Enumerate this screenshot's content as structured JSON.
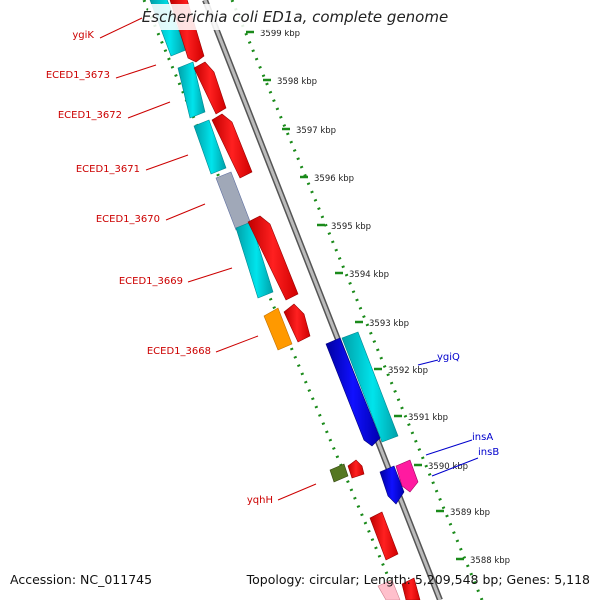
{
  "title": "Escherichia coli ED1a, complete genome",
  "footer": {
    "accession": "Accession: NC_011745",
    "summary": "Topology: circular; Length: 5,209,548 bp; Genes: 5,118"
  },
  "kbp_ticks": [
    "3599 kbp",
    "3598 kbp",
    "3597 kbp",
    "3596 kbp",
    "3595 kbp",
    "3594 kbp",
    "3593 kbp",
    "3592 kbp",
    "3591 kbp",
    "3590 kbp",
    "3589 kbp",
    "3588 kbp"
  ],
  "gene_labels_left": [
    "ygiK",
    "ECED1_3673",
    "ECED1_3672",
    "ECED1_3671",
    "ECED1_3670",
    "ECED1_3669",
    "ECED1_3668",
    "yqhH"
  ],
  "gene_labels_right": [
    "ygiQ",
    "insA",
    "insB"
  ],
  "colors": {
    "left_label": "#cc0000",
    "right_label": "#0000cc",
    "tick_dots": "#1a8a1a",
    "backbone": "#888888",
    "red": "#ff1010",
    "cyan": "#00d8e0",
    "dark_cyan": "#00a8b0",
    "blue": "#0000e0",
    "orange": "#ff9900",
    "magenta": "#ff1aa0",
    "olive": "#557722",
    "gray": "#a0a8b8"
  }
}
